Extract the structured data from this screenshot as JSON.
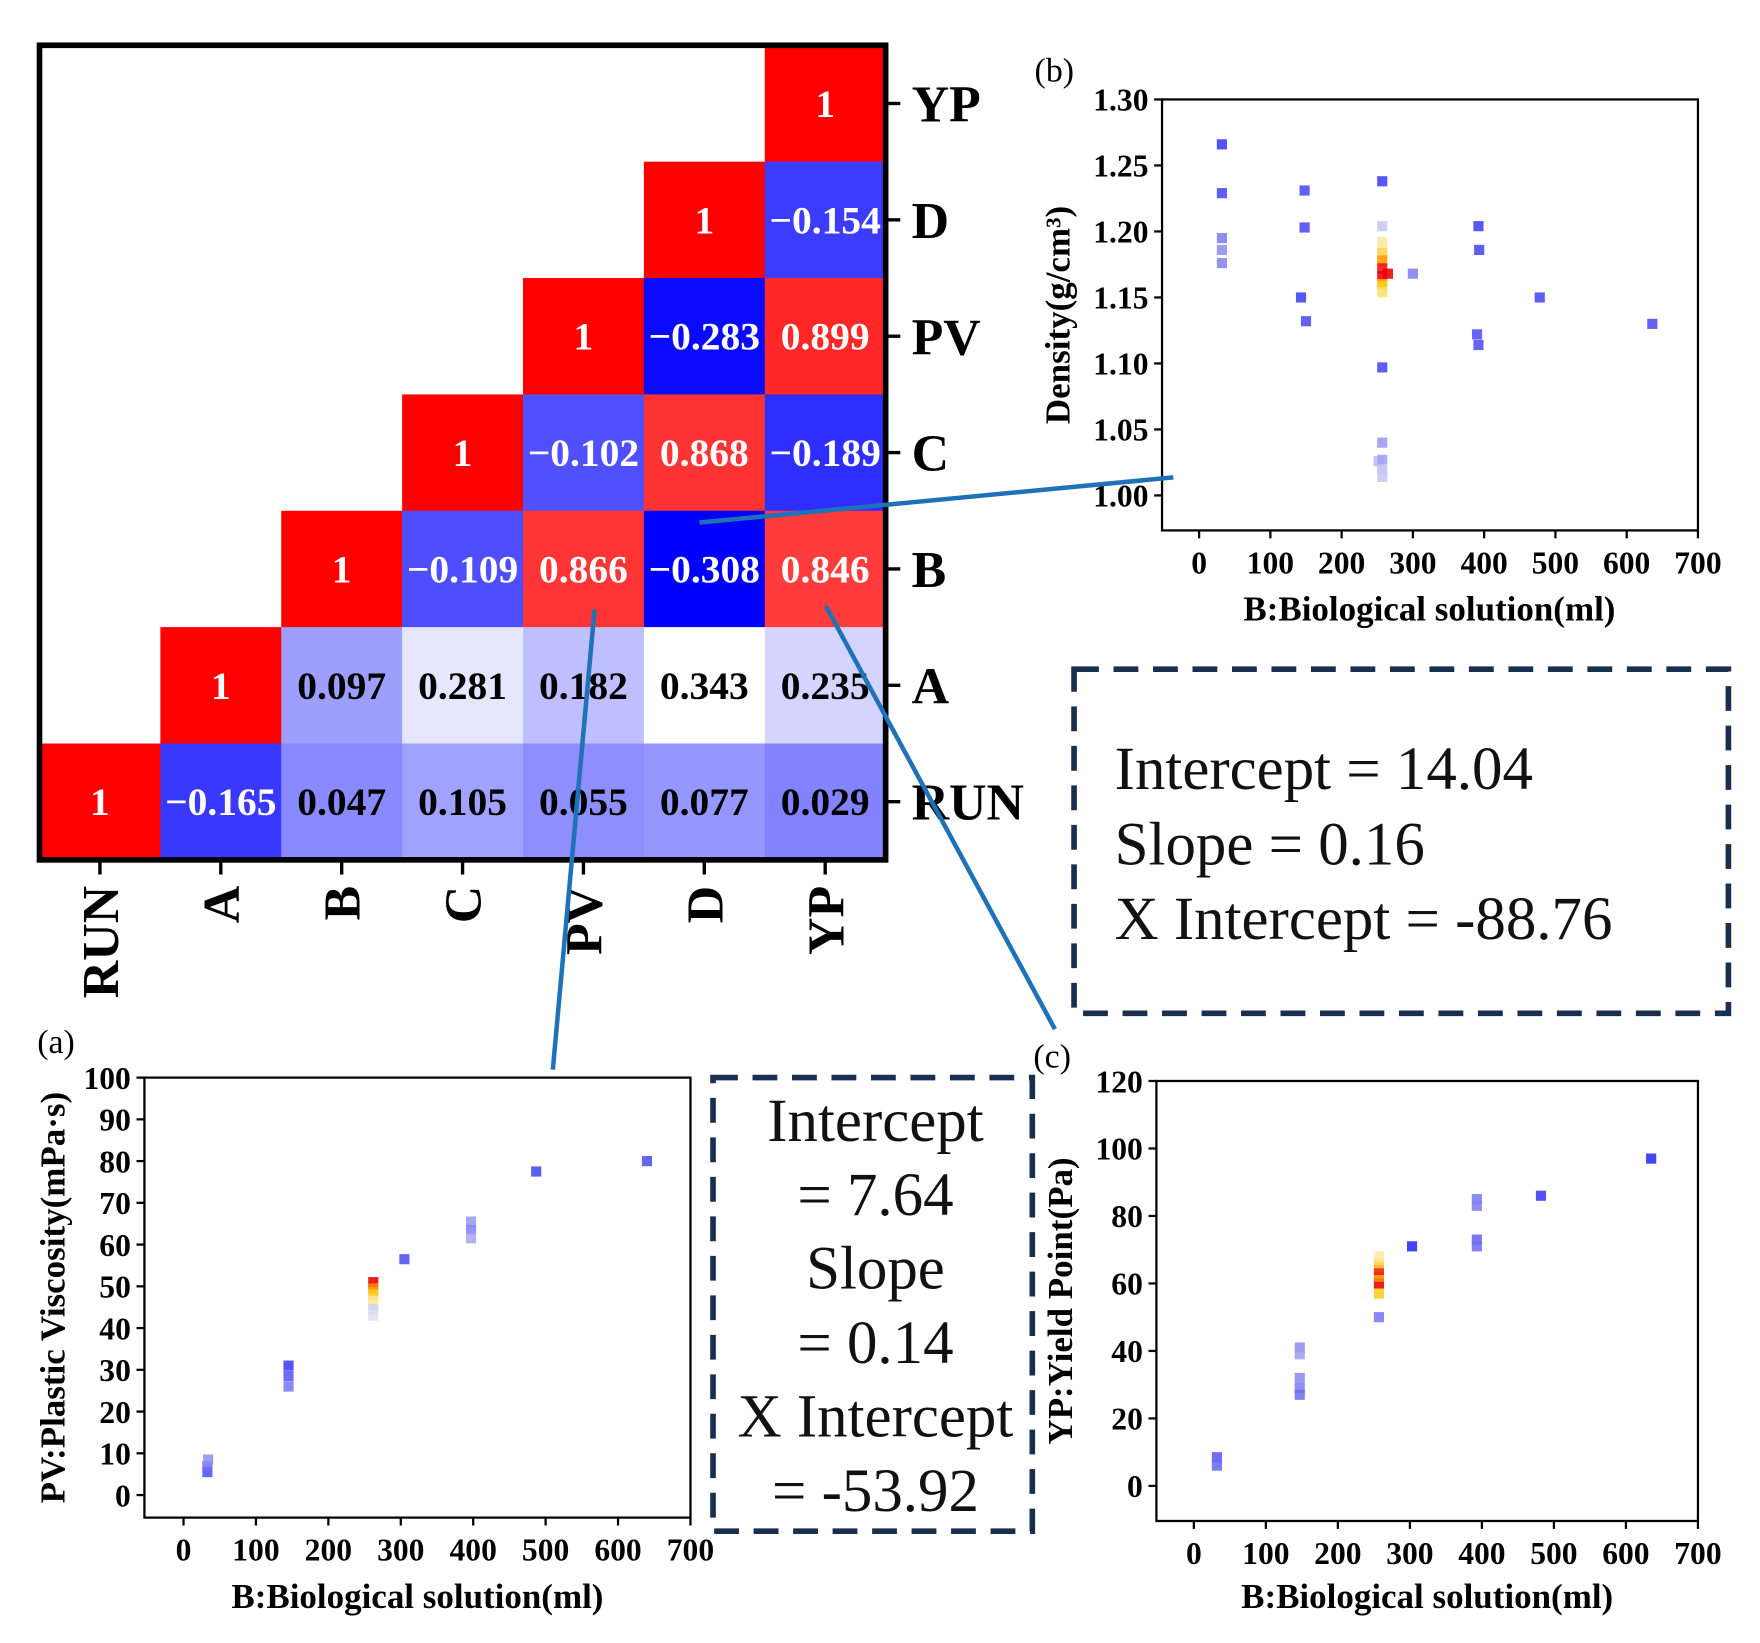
{
  "figure": {
    "colors": {
      "connector": "#1f72b8",
      "fit_box_border": "#1a2e4f",
      "fit_text": "#111111"
    }
  },
  "chart_data": [
    {
      "type": "heatmap",
      "row_labels": [
        "YP",
        "D",
        "PV",
        "C",
        "B",
        "A",
        "RUN"
      ],
      "col_labels": [
        "RUN",
        "A",
        "B",
        "C",
        "PV",
        "D",
        "YP"
      ],
      "matrix": [
        [
          null,
          null,
          null,
          null,
          null,
          null,
          1
        ],
        [
          null,
          null,
          null,
          null,
          null,
          1,
          -0.154
        ],
        [
          null,
          null,
          null,
          null,
          1,
          -0.283,
          0.899
        ],
        [
          null,
          null,
          null,
          1,
          -0.102,
          0.868,
          -0.189
        ],
        [
          null,
          null,
          1,
          -0.109,
          0.866,
          -0.308,
          0.846
        ],
        [
          null,
          1,
          0.097,
          0.281,
          0.182,
          0.343,
          0.235
        ],
        [
          1,
          -0.165,
          0.047,
          0.105,
          0.055,
          0.077,
          0.029
        ]
      ],
      "vmin": -0.308,
      "vmax": 1
    },
    {
      "type": "scatter",
      "panel_label": "(a)",
      "xlabel": "B:Biological solution(ml)",
      "ylabel": "PV:Plastic Viscosity(mPa·s)",
      "xlim": [
        -54,
        700
      ],
      "ylim": [
        -5.4,
        100
      ],
      "xticks": [
        "0",
        "100",
        "200",
        "300",
        "400",
        "500",
        "600",
        "700"
      ],
      "yticks": [
        "0",
        "10",
        "20",
        "30",
        "40",
        "50",
        "60",
        "70",
        "80",
        "90",
        "100"
      ],
      "points": [
        [
          33,
          5.5,
          "#5050f2"
        ],
        [
          33,
          7,
          "#7070f0"
        ],
        [
          34,
          8.5,
          "#9090f0"
        ],
        [
          145,
          31,
          "#3c3cf2"
        ],
        [
          145,
          28.5,
          "#5a5af2"
        ],
        [
          145,
          26,
          "#7a7af0"
        ],
        [
          262,
          51,
          "#e80000"
        ],
        [
          262,
          49.5,
          "#ff8c00"
        ],
        [
          262,
          48,
          "#ffcc20"
        ],
        [
          262,
          46.5,
          "#ffe690"
        ],
        [
          262,
          44.5,
          "#d0d0f2"
        ],
        [
          262,
          43,
          "#e0e0f4"
        ],
        [
          305,
          56.5,
          "#5050f2"
        ],
        [
          397,
          65.5,
          "#9a9af0"
        ],
        [
          397,
          63.5,
          "#8888f0"
        ],
        [
          397,
          61.5,
          "#a8a8f0"
        ],
        [
          487,
          77.5,
          "#4848f2"
        ],
        [
          640,
          80,
          "#5050f2"
        ]
      ]
    },
    {
      "type": "scatter",
      "panel_label": "(b)",
      "xlabel": "B:Biological solution(ml)",
      "ylabel": "Density(g/cm³)",
      "xlim": [
        -52,
        700
      ],
      "ylim": [
        0.9735,
        1.3
      ],
      "xticks": [
        "0",
        "100",
        "200",
        "300",
        "400",
        "500",
        "600",
        "700"
      ],
      "yticks": [
        "1.00",
        "1.05",
        "1.10",
        "1.15",
        "1.20",
        "1.25",
        "1.30"
      ],
      "points": [
        [
          32,
          1.266,
          "#3b3bf2"
        ],
        [
          32,
          1.229,
          "#4848f2"
        ],
        [
          32,
          1.195,
          "#7d7df0"
        ],
        [
          32,
          1.186,
          "#8f8ff0"
        ],
        [
          32,
          1.176,
          "#8585ee"
        ],
        [
          148,
          1.231,
          "#4a4af2"
        ],
        [
          148,
          1.203,
          "#4a4af2"
        ],
        [
          143,
          1.15,
          "#4040f2"
        ],
        [
          150,
          1.132,
          "#4c4cf2"
        ],
        [
          257,
          1.238,
          "#4040f2"
        ],
        [
          257,
          1.204,
          "#c8c8f0"
        ],
        [
          257,
          1.192,
          "#ffe6a0"
        ],
        [
          257,
          1.184,
          "#ffd24a"
        ],
        [
          257,
          1.178,
          "#ff9a00"
        ],
        [
          257,
          1.172,
          "#f01010"
        ],
        [
          257,
          1.166,
          "#e80000"
        ],
        [
          265,
          1.168,
          "#e80000"
        ],
        [
          257,
          1.16,
          "#ffc400"
        ],
        [
          257,
          1.154,
          "#ffe070"
        ],
        [
          300,
          1.168,
          "#8080f0"
        ],
        [
          257,
          1.097,
          "#4848f2"
        ],
        [
          257,
          1.04,
          "#9a9af0"
        ],
        [
          252,
          1.026,
          "#b8b8f0"
        ],
        [
          257,
          1.027,
          "#a0a0f0"
        ],
        [
          257,
          1.02,
          "#c0c0f0"
        ],
        [
          257,
          1.014,
          "#c8c8f2"
        ],
        [
          392,
          1.204,
          "#4040f2"
        ],
        [
          393,
          1.186,
          "#4848f2"
        ],
        [
          390,
          1.122,
          "#5050f2"
        ],
        [
          392,
          1.114,
          "#5050f2"
        ],
        [
          478,
          1.15,
          "#4848f2"
        ],
        [
          636,
          1.13,
          "#4c4cf2"
        ]
      ]
    },
    {
      "type": "scatter",
      "panel_label": "(c)",
      "xlabel": "B:Biological solution(ml)",
      "ylabel": "YP:Yield Point(Pa)",
      "xlim": [
        -52,
        700
      ],
      "ylim": [
        -10.4,
        120
      ],
      "xticks": [
        "0",
        "100",
        "200",
        "300",
        "400",
        "500",
        "600",
        "700"
      ],
      "yticks": [
        "0",
        "20",
        "40",
        "60",
        "80",
        "100",
        "120"
      ],
      "points": [
        [
          32,
          8.5,
          "#5a5af2"
        ],
        [
          32,
          6,
          "#6a6af0"
        ],
        [
          147,
          41,
          "#9090f0"
        ],
        [
          147,
          39,
          "#a0a0f0"
        ],
        [
          147,
          32,
          "#8c8cf0"
        ],
        [
          147,
          29,
          "#8080f0"
        ],
        [
          147,
          27,
          "#7070f0"
        ],
        [
          257,
          50,
          "#7878f0"
        ],
        [
          257,
          57,
          "#ffcc20"
        ],
        [
          257,
          60,
          "#e80000"
        ],
        [
          257,
          62,
          "#ff8c00"
        ],
        [
          257,
          64,
          "#f02000"
        ],
        [
          257,
          66,
          "#ffd040"
        ],
        [
          257,
          68,
          "#ffe8a0"
        ],
        [
          303,
          71,
          "#2a2af2"
        ],
        [
          393,
          85,
          "#7c7cf0"
        ],
        [
          393,
          83,
          "#8080f0"
        ],
        [
          393,
          73,
          "#6868f0"
        ],
        [
          393,
          71,
          "#7070f0"
        ],
        [
          482,
          86,
          "#3a3af2"
        ],
        [
          635,
          97,
          "#2a2af2"
        ]
      ]
    }
  ],
  "annotations": {
    "fit_box_right": [
      "Intercept = 14.04",
      "Slope = 0.16",
      "X Intercept = -88.76"
    ],
    "fit_box_middle": [
      "Intercept",
      "= 7.64",
      "Slope",
      "= 0.14",
      "X Intercept",
      "= -53.92"
    ]
  }
}
